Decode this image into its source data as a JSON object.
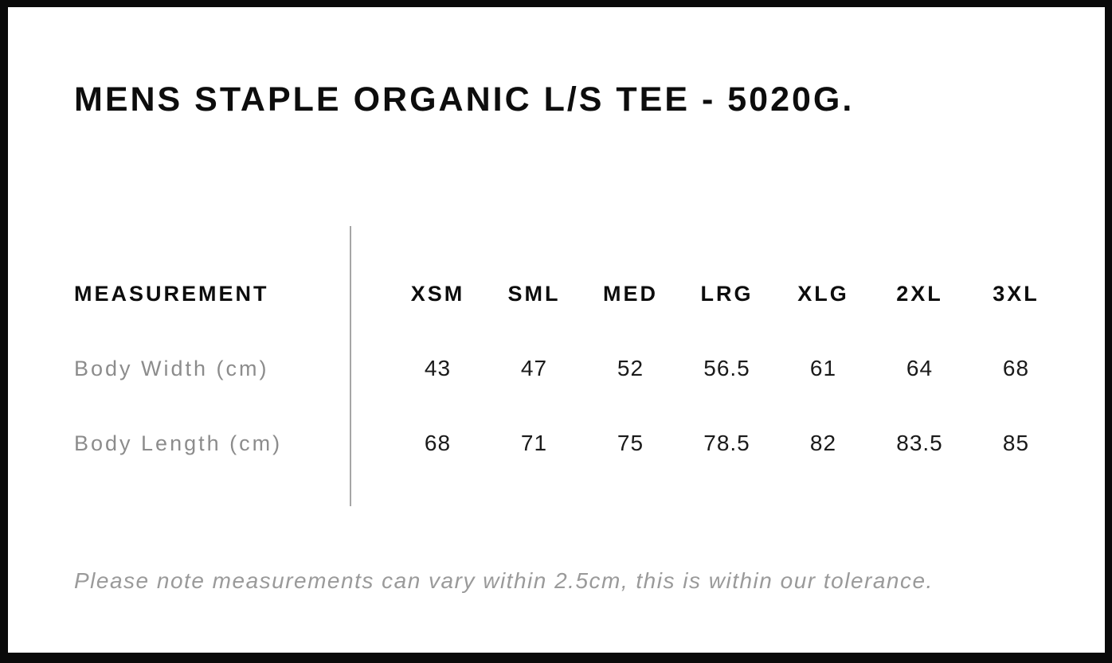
{
  "header": {
    "title": "MENS STAPLE ORGANIC L/S TEE - 5020G."
  },
  "table": {
    "measurement_header": "MEASUREMENT",
    "size_headers": [
      "XSM",
      "SML",
      "MED",
      "LRG",
      "XLG",
      "2XL",
      "3XL"
    ],
    "rows": [
      {
        "label": "Body Width (cm)",
        "values": [
          "43",
          "47",
          "52",
          "56.5",
          "61",
          "64",
          "68"
        ]
      },
      {
        "label": "Body Length (cm)",
        "values": [
          "68",
          "71",
          "75",
          "78.5",
          "82",
          "83.5",
          "85"
        ]
      }
    ]
  },
  "footnote": "Please note measurements can vary within 2.5cm, this is within our tolerance.",
  "colors": {
    "frame": "#0a0a0a",
    "heading_text": "#0d0d0d",
    "muted_label": "#8c8c8c",
    "value_text": "#1a1a1a",
    "divider": "#a6a6a6",
    "footnote_text": "#9a9a9a"
  },
  "chart_data": {
    "type": "table",
    "title": "MENS STAPLE ORGANIC L/S TEE - 5020G.",
    "columns": [
      "MEASUREMENT",
      "XSM",
      "SML",
      "MED",
      "LRG",
      "XLG",
      "2XL",
      "3XL"
    ],
    "rows": [
      {
        "label": "Body Width (cm)",
        "values": [
          43,
          47,
          52,
          56.5,
          61,
          64,
          68
        ]
      },
      {
        "label": "Body Length (cm)",
        "values": [
          68,
          71,
          75,
          78.5,
          82,
          83.5,
          85
        ]
      }
    ],
    "footnote": "Please note measurements can vary within 2.5cm, this is within our tolerance."
  }
}
